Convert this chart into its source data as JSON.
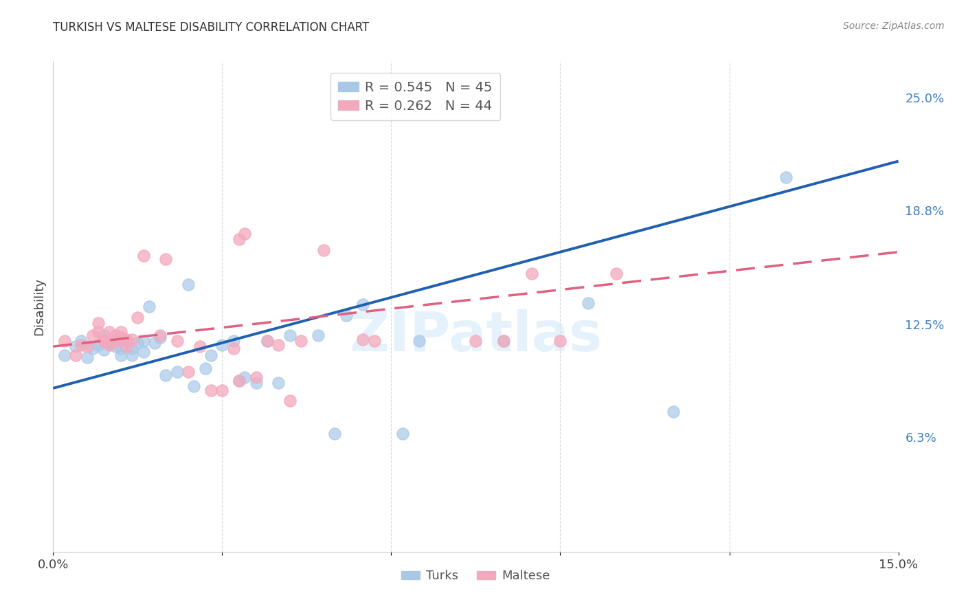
{
  "title": "TURKISH VS MALTESE DISABILITY CORRELATION CHART",
  "source": "Source: ZipAtlas.com",
  "ylabel": "Disability",
  "xlim": [
    0.0,
    0.15
  ],
  "ylim": [
    0.0,
    0.27
  ],
  "ytick_positions": [
    0.063,
    0.125,
    0.188,
    0.25
  ],
  "ytick_labels": [
    "6.3%",
    "12.5%",
    "18.8%",
    "25.0%"
  ],
  "xtick_positions": [
    0.0,
    0.03,
    0.06,
    0.09,
    0.12,
    0.15
  ],
  "xtick_labels": [
    "0.0%",
    "",
    "",
    "",
    "",
    "15.0%"
  ],
  "turks_color": "#a8c8e8",
  "maltese_color": "#f4a8bc",
  "turks_R": 0.545,
  "turks_N": 45,
  "maltese_R": 0.262,
  "maltese_N": 44,
  "turks_x": [
    0.002,
    0.004,
    0.005,
    0.006,
    0.007,
    0.008,
    0.009,
    0.009,
    0.01,
    0.011,
    0.012,
    0.012,
    0.013,
    0.014,
    0.014,
    0.015,
    0.016,
    0.016,
    0.017,
    0.018,
    0.019,
    0.02,
    0.022,
    0.024,
    0.025,
    0.027,
    0.028,
    0.03,
    0.032,
    0.033,
    0.034,
    0.036,
    0.038,
    0.04,
    0.042,
    0.047,
    0.05,
    0.052,
    0.055,
    0.062,
    0.065,
    0.08,
    0.095,
    0.11,
    0.13
  ],
  "turks_y": [
    0.108,
    0.113,
    0.116,
    0.107,
    0.112,
    0.114,
    0.111,
    0.119,
    0.115,
    0.113,
    0.112,
    0.108,
    0.116,
    0.112,
    0.108,
    0.115,
    0.116,
    0.11,
    0.135,
    0.115,
    0.118,
    0.097,
    0.099,
    0.147,
    0.091,
    0.101,
    0.108,
    0.114,
    0.116,
    0.094,
    0.096,
    0.093,
    0.116,
    0.093,
    0.119,
    0.119,
    0.065,
    0.13,
    0.136,
    0.065,
    0.116,
    0.116,
    0.137,
    0.077,
    0.206
  ],
  "maltese_x": [
    0.002,
    0.004,
    0.005,
    0.006,
    0.007,
    0.008,
    0.008,
    0.009,
    0.009,
    0.01,
    0.01,
    0.011,
    0.011,
    0.012,
    0.012,
    0.013,
    0.013,
    0.014,
    0.015,
    0.016,
    0.019,
    0.02,
    0.022,
    0.024,
    0.026,
    0.028,
    0.03,
    0.032,
    0.033,
    0.036,
    0.038,
    0.04,
    0.042,
    0.044,
    0.048,
    0.033,
    0.034,
    0.055,
    0.057,
    0.075,
    0.08,
    0.085,
    0.09,
    0.1
  ],
  "maltese_y": [
    0.116,
    0.108,
    0.114,
    0.113,
    0.119,
    0.121,
    0.126,
    0.116,
    0.116,
    0.121,
    0.114,
    0.116,
    0.119,
    0.118,
    0.121,
    0.113,
    0.117,
    0.117,
    0.129,
    0.163,
    0.119,
    0.161,
    0.116,
    0.099,
    0.113,
    0.089,
    0.089,
    0.112,
    0.094,
    0.096,
    0.116,
    0.114,
    0.083,
    0.116,
    0.166,
    0.172,
    0.175,
    0.117,
    0.116,
    0.116,
    0.116,
    0.153,
    0.116,
    0.153
  ],
  "background_color": "#ffffff",
  "grid_color": "#d8d8d8",
  "watermark": "ZIPatlas",
  "turks_line_color": "#2060b0",
  "maltese_line_color": "#e06080",
  "right_tick_color": "#4080c0",
  "title_fontsize": 12,
  "source_fontsize": 10,
  "tick_fontsize": 13
}
